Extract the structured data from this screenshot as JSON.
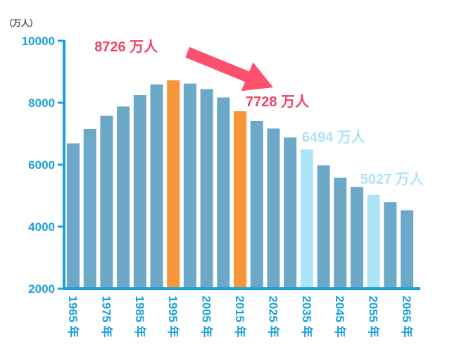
{
  "chart_data": {
    "type": "bar",
    "y_unit_label": "（万人）",
    "ylim": [
      2000,
      10000
    ],
    "yticks": [
      "10000",
      "8000",
      "6000",
      "4000",
      "2000"
    ],
    "ytick_values": [
      10000,
      8000,
      6000,
      4000,
      2000
    ],
    "categories": [
      "1965",
      "1970",
      "1975",
      "1980",
      "1985",
      "1990",
      "1995",
      "2000",
      "2005",
      "2010",
      "2015",
      "2020",
      "2025",
      "2030",
      "2035",
      "2040",
      "2045",
      "2050",
      "2055",
      "2060",
      "2065"
    ],
    "values": [
      6690,
      7160,
      7580,
      7880,
      8250,
      8590,
      8726,
      8620,
      8440,
      8170,
      7728,
      7410,
      7170,
      6880,
      6494,
      5980,
      5580,
      5280,
      5027,
      4790,
      4530
    ],
    "x_tick_labels": [
      "1965 年",
      "1975 年",
      "1985 年",
      "1995 年",
      "2005 年",
      "2015 年",
      "2025 年",
      "2035 年",
      "2045 年",
      "2055 年",
      "2065 年"
    ],
    "x_tick_categories": [
      "1965",
      "1975",
      "1985",
      "1995",
      "2005",
      "2015",
      "2025",
      "2035",
      "2045",
      "2055",
      "2065"
    ],
    "bar_colors": {
      "default": "#6ca8c8",
      "highlight": "#f7963a",
      "projected_highlight": "#aee4f8"
    },
    "highlight_categories": [
      "1995",
      "2015"
    ],
    "projected_highlight_categories": [
      "2035",
      "2055"
    ],
    "annotations": [
      {
        "text": "8726 万人",
        "category": "1995",
        "color": "#ee4466"
      },
      {
        "text": "7728 万人",
        "category": "2015",
        "color": "#ee4466"
      },
      {
        "text": "6494 万人",
        "category": "2035",
        "color": "#aee4f8"
      },
      {
        "text": "5027 万人",
        "category": "2055",
        "color": "#aee4f8"
      }
    ],
    "axis_color": "#1ba0dc",
    "arrow_color": "#ff4f6e",
    "grid": false
  }
}
